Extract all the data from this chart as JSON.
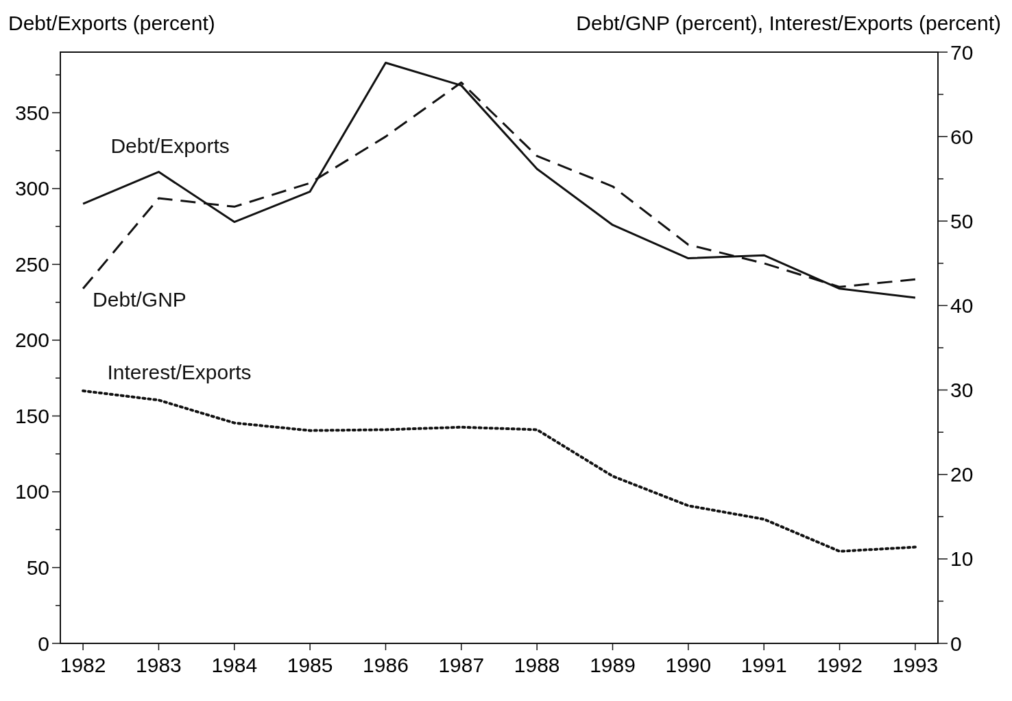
{
  "chart_data": {
    "type": "line",
    "ylabel": "Debt/Exports (percent)",
    "y2label": "Debt/GNP (percent), Interest/Exports (percent)",
    "x": [
      1982,
      1983,
      1984,
      1985,
      1986,
      1987,
      1988,
      1989,
      1990,
      1991,
      1992,
      1993
    ],
    "xlim": [
      1981.7,
      1993.3
    ],
    "xticks": [
      1982,
      1983,
      1984,
      1985,
      1986,
      1987,
      1988,
      1989,
      1990,
      1991,
      1992,
      1993
    ],
    "ylim": [
      0,
      390
    ],
    "yticks": [
      0,
      {
        "value": 25,
        "label": null
      },
      50,
      {
        "value": 75,
        "label": null
      },
      100,
      {
        "value": 125,
        "label": null
      },
      150,
      {
        "value": 175,
        "label": null
      },
      200,
      {
        "value": 225,
        "label": null
      },
      250,
      {
        "value": 275,
        "label": null
      },
      300,
      {
        "value": 325,
        "label": null
      },
      350,
      {
        "value": 375,
        "label": null
      }
    ],
    "y2lim": [
      0,
      70
    ],
    "y2ticks": [
      0,
      {
        "value": 5,
        "label": null
      },
      10,
      {
        "value": 15,
        "label": null
      },
      20,
      {
        "value": 25,
        "label": null
      },
      30,
      {
        "value": 35,
        "label": null
      },
      40,
      {
        "value": 45,
        "label": null
      },
      50,
      {
        "value": 55,
        "label": null
      },
      60,
      {
        "value": 65,
        "label": null
      },
      70
    ],
    "grid": false,
    "marker": "none",
    "series": [
      {
        "name": "Debt/Exports",
        "color": "#111111",
        "line_style": "solid",
        "values": [
          290,
          311,
          278,
          298,
          383,
          368,
          313,
          276,
          254,
          256,
          234,
          228
        ]
      },
      {
        "name": "Debt/GNP",
        "color": "#111111",
        "line_style": "dashed",
        "axis": "y2",
        "values": [
          42,
          52.7,
          51.7,
          54.5,
          60,
          66.4,
          57.7,
          54.1,
          47.2,
          45,
          42.2,
          43.1
        ]
      },
      {
        "name": "Interest/Exports",
        "color": "#111111",
        "line_style": "dotted",
        "axis": "y2",
        "values": [
          29.9,
          28.8,
          26.1,
          25.2,
          25.3,
          25.6,
          25.3,
          19.8,
          16.3,
          14.7,
          10.9,
          11.4
        ]
      }
    ]
  }
}
